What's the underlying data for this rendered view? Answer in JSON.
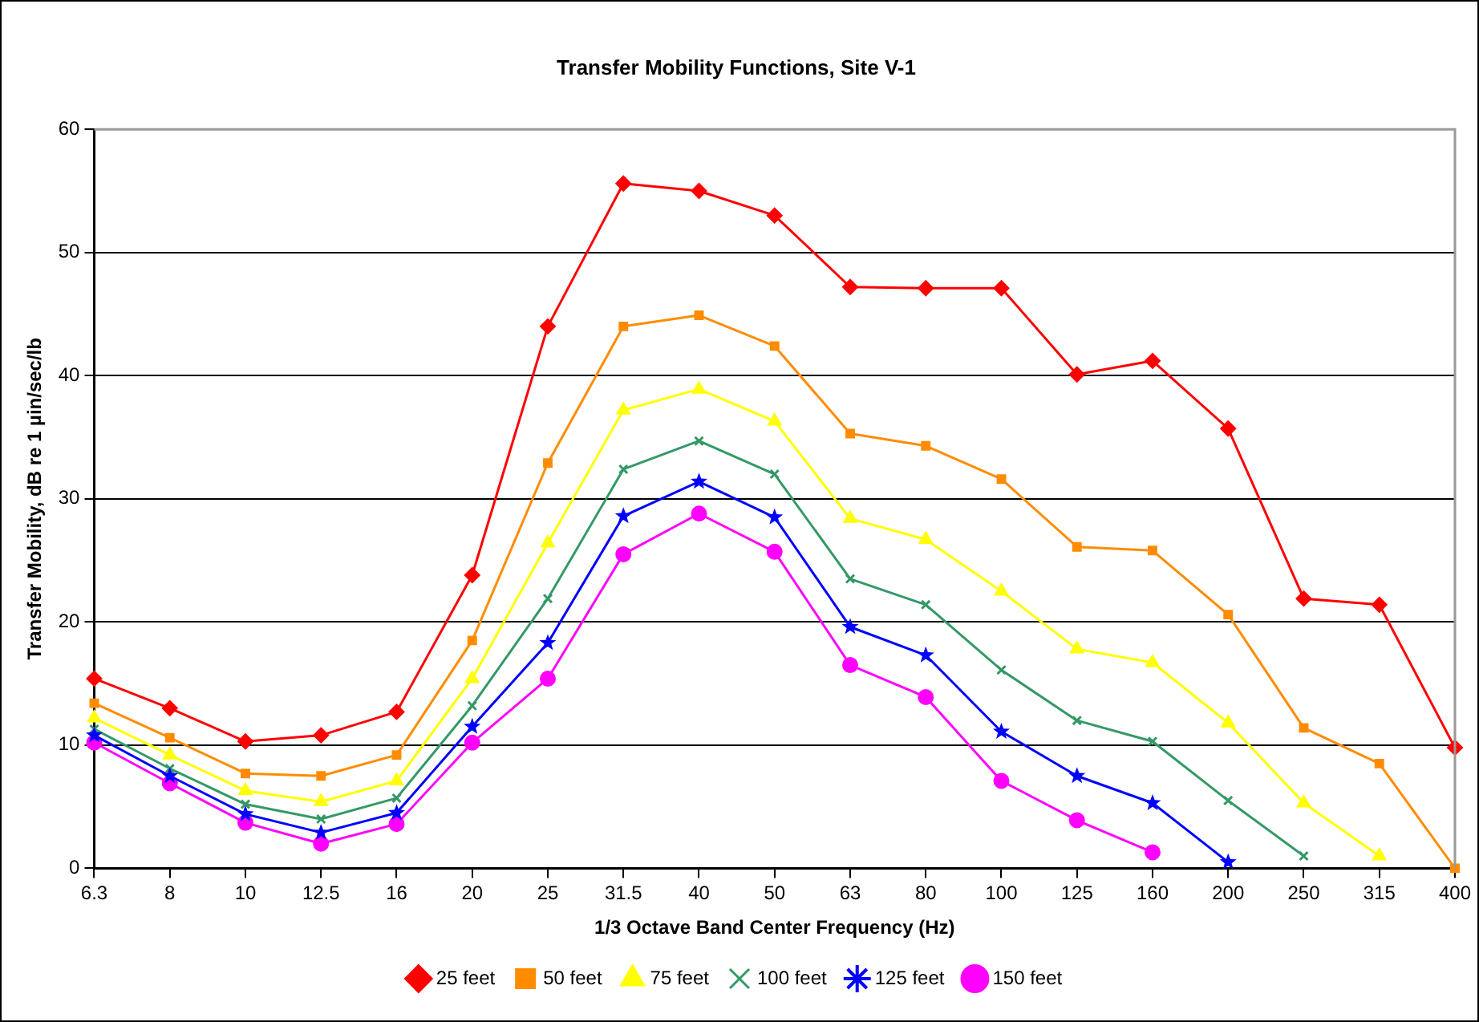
{
  "chart_data": {
    "type": "line",
    "title": "Transfer Mobility Functions, Site V-1",
    "xlabel": "1/3 Octave Band Center Frequency (Hz)",
    "ylabel": "Transfer Mobility, dB re 1 µin/sec/lb",
    "categories": [
      "6.3",
      "8",
      "10",
      "12.5",
      "16",
      "20",
      "25",
      "31.5",
      "40",
      "50",
      "63",
      "80",
      "100",
      "125",
      "160",
      "200",
      "250",
      "315",
      "400"
    ],
    "ylim": [
      0,
      60
    ],
    "yticks": [
      0,
      10,
      20,
      30,
      40,
      50,
      60
    ],
    "grid": "y",
    "legend": "bottom",
    "line_style": "solid",
    "series": [
      {
        "name": "25 feet",
        "color": "#ff0000",
        "marker": "diamond",
        "values": [
          15.4,
          13.0,
          10.3,
          10.8,
          12.7,
          23.8,
          44.0,
          55.6,
          55.0,
          53.0,
          47.2,
          47.1,
          47.1,
          40.1,
          41.2,
          35.7,
          21.9,
          21.4,
          9.8
        ]
      },
      {
        "name": "50 feet",
        "color": "#ff8c00",
        "marker": "square",
        "values": [
          13.4,
          10.6,
          7.7,
          7.5,
          9.2,
          18.5,
          32.9,
          44.0,
          44.9,
          42.4,
          35.3,
          34.3,
          31.6,
          26.1,
          25.8,
          20.6,
          11.4,
          8.5,
          0
        ]
      },
      {
        "name": "75 feet",
        "color": "#ffff00",
        "marker": "triangle",
        "values": [
          12.2,
          9.2,
          6.3,
          5.4,
          7.1,
          15.4,
          26.4,
          37.2,
          38.9,
          36.3,
          28.4,
          26.7,
          22.5,
          17.8,
          16.7,
          11.8,
          5.3,
          1.0,
          null
        ]
      },
      {
        "name": "100 feet",
        "color": "#339966",
        "marker": "cross",
        "values": [
          11.3,
          8.1,
          5.2,
          4.0,
          5.7,
          13.2,
          21.9,
          32.4,
          34.7,
          32.0,
          23.5,
          21.4,
          16.1,
          12.0,
          10.3,
          5.5,
          1.0,
          null,
          null
        ]
      },
      {
        "name": "125 feet",
        "color": "#0000ff",
        "marker": "star",
        "values": [
          10.8,
          7.5,
          4.4,
          2.9,
          4.5,
          11.5,
          18.3,
          28.6,
          31.4,
          28.5,
          19.6,
          17.3,
          11.1,
          7.5,
          5.3,
          0.5,
          null,
          null,
          null
        ]
      },
      {
        "name": "150 feet",
        "color": "#ff00ff",
        "marker": "circle",
        "values": [
          10.2,
          6.9,
          3.7,
          2.0,
          3.6,
          10.2,
          15.4,
          25.5,
          28.8,
          25.7,
          16.5,
          13.9,
          7.1,
          3.9,
          1.3,
          null,
          null,
          null,
          null
        ]
      }
    ]
  }
}
